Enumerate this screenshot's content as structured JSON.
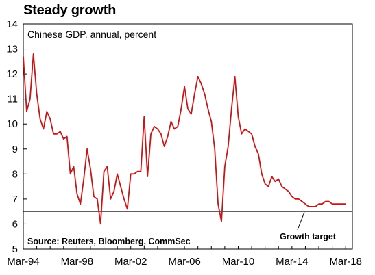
{
  "chart_data": {
    "type": "line",
    "title": "Steady growth",
    "subtitle": "Chinese GDP, annual, percent",
    "source": "Source: Reuters, Bloomberg, CommSec",
    "reference_line": {
      "label": "Growth target",
      "value": 6.5
    },
    "ylim": [
      5,
      14
    ],
    "yticks": [
      "5",
      "6",
      "7",
      "8",
      "9",
      "10",
      "11",
      "12",
      "13",
      "14"
    ],
    "xticks": [
      "Mar-94",
      "Mar-98",
      "Mar-02",
      "Mar-06",
      "Mar-10",
      "Mar-14",
      "Mar-18"
    ],
    "xlim": [
      1994.0,
      2018.5
    ],
    "grid": false,
    "line_color": "#cc1414",
    "series": [
      {
        "x": [
          1994.0,
          1994.25,
          1994.5,
          1994.75,
          1995.0,
          1995.25,
          1995.5,
          1995.75,
          1996.0,
          1996.25,
          1996.5,
          1996.75,
          1997.0,
          1997.25,
          1997.5,
          1997.75,
          1998.0,
          1998.25,
          1998.5,
          1998.75,
          1999.0,
          1999.25,
          1999.5,
          1999.75,
          2000.0,
          2000.25,
          2000.5,
          2000.75,
          2001.0,
          2001.25,
          2001.5,
          2001.75,
          2002.0,
          2002.25,
          2002.5,
          2002.75,
          2003.0,
          2003.25,
          2003.5,
          2003.75,
          2004.0,
          2004.25,
          2004.5,
          2004.75,
          2005.0,
          2005.25,
          2005.5,
          2005.75,
          2006.0,
          2006.25,
          2006.5,
          2006.75,
          2007.0,
          2007.25,
          2007.5,
          2007.75,
          2008.0,
          2008.25,
          2008.5,
          2008.75,
          2009.0,
          2009.25,
          2009.5,
          2009.75,
          2010.0,
          2010.25,
          2010.5,
          2010.75,
          2011.0,
          2011.25,
          2011.5,
          2011.75,
          2012.0,
          2012.25,
          2012.5,
          2012.75,
          2013.0,
          2013.25,
          2013.5,
          2013.75,
          2014.0,
          2014.25,
          2014.5,
          2014.75,
          2015.0,
          2015.25,
          2015.5,
          2015.75,
          2016.0,
          2016.25,
          2016.5,
          2016.75,
          2017.0,
          2017.25,
          2017.5,
          2017.75,
          2018.0
        ],
        "y": [
          12.7,
          10.5,
          11.0,
          12.8,
          11.2,
          10.2,
          9.8,
          10.5,
          10.2,
          9.6,
          9.6,
          9.7,
          9.4,
          9.5,
          8.0,
          8.3,
          7.2,
          6.8,
          7.8,
          9.0,
          8.2,
          7.1,
          7.0,
          6.0,
          8.1,
          8.3,
          7.0,
          7.3,
          8.0,
          7.5,
          7.0,
          6.6,
          8.0,
          8.0,
          8.1,
          8.1,
          10.3,
          7.9,
          9.6,
          9.9,
          9.8,
          9.6,
          9.1,
          9.5,
          10.1,
          9.8,
          9.9,
          10.6,
          11.5,
          10.6,
          10.4,
          11.2,
          11.9,
          11.6,
          11.2,
          10.6,
          10.1,
          9.0,
          6.8,
          6.1,
          8.3,
          9.1,
          10.6,
          11.9,
          10.3,
          9.6,
          9.8,
          9.7,
          9.6,
          9.1,
          8.8,
          8.0,
          7.6,
          7.5,
          7.9,
          7.7,
          7.8,
          7.5,
          7.4,
          7.3,
          7.1,
          7.0,
          7.0,
          6.9,
          6.8,
          6.7,
          6.7,
          6.7,
          6.8,
          6.8,
          6.9,
          6.9,
          6.8,
          6.8,
          6.8,
          6.8,
          6.8
        ]
      }
    ]
  }
}
